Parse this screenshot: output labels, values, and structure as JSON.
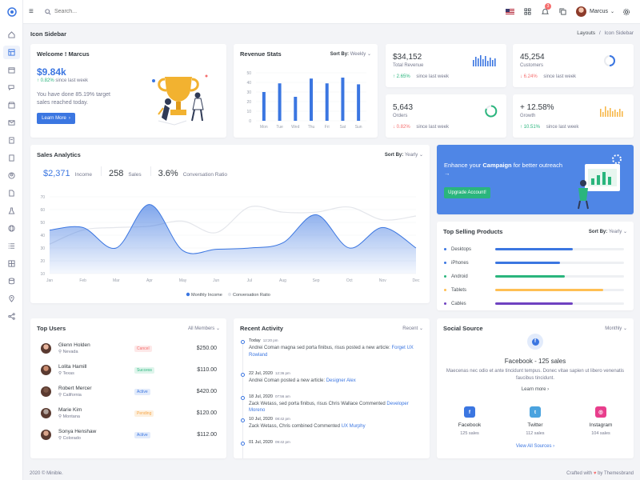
{
  "topbar": {
    "search_placeholder": "Search...",
    "username": "Marcus",
    "notif_count": "3"
  },
  "page": {
    "title": "Icon Sidebar",
    "breadcrumb": [
      "Layouts",
      "Icon Sidebar"
    ]
  },
  "welcome": {
    "title": "Welcome ! Marcus",
    "amount": "$9.84k",
    "change": "0.82%",
    "change_text": "since last week",
    "text": "You have done 85.19% target sales reached today.",
    "button": "Learn More"
  },
  "revenue": {
    "title": "Revenue Stats",
    "sort_label": "Sort By:",
    "sort_value": "Weekly"
  },
  "stats": [
    {
      "value": "$34,152",
      "label": "Total Revenue",
      "change": "2.65%",
      "dir": "up",
      "since": "since last week"
    },
    {
      "value": "45,254",
      "label": "Customers",
      "change": "6.24%",
      "dir": "down",
      "since": "since last week"
    },
    {
      "value": "5,643",
      "label": "Orders",
      "change": "0.82%",
      "dir": "down",
      "since": "since last week"
    },
    {
      "value": "+ 12.58%",
      "label": "Growth",
      "change": "10.51%",
      "dir": "up",
      "since": "since last week"
    }
  ],
  "analytics": {
    "title": "Sales Analytics",
    "sort_label": "Sort By:",
    "sort_value": "Yearly",
    "income": "$2,371",
    "income_label": "Income",
    "sales": "258",
    "sales_label": "Sales",
    "ratio": "3.6%",
    "ratio_label": "Conversation Ratio"
  },
  "campaign": {
    "text_pre": "Enhance your ",
    "text_bold": "Campaign",
    "text_post": " for better outreach",
    "button": "Upgrade Account!"
  },
  "products": {
    "title": "Top Selling Products",
    "sort_label": "Sort By:",
    "sort_value": "Yearly",
    "items": [
      {
        "name": "Desktops",
        "value": 0.6,
        "color": "#3b76e1"
      },
      {
        "name": "iPhones",
        "value": 0.5,
        "color": "#3b76e1"
      },
      {
        "name": "Android",
        "value": 0.54,
        "color": "#2ab57d"
      },
      {
        "name": "Tablets",
        "value": 0.84,
        "color": "#ffbf53"
      },
      {
        "name": "Cables",
        "value": 0.6,
        "color": "#6f42c1"
      }
    ]
  },
  "users": {
    "title": "Top Users",
    "filter": "All Members",
    "rows": [
      {
        "name": "Glenn Holden",
        "city": "Nevada",
        "status": "Cancel",
        "amount": "$250.00",
        "color": "#f56e6e",
        "bg": "#fde8e8"
      },
      {
        "name": "Lolita Hamill",
        "city": "Texas",
        "status": "Success",
        "amount": "$110.00",
        "color": "#2ab57d",
        "bg": "#dff5ec"
      },
      {
        "name": "Robert Mercer",
        "city": "California",
        "status": "Active",
        "amount": "$420.00",
        "color": "#3b76e1",
        "bg": "#e2ebfb"
      },
      {
        "name": "Marie Kim",
        "city": "Montana",
        "status": "Pending",
        "amount": "$120.00",
        "color": "#f7a84a",
        "bg": "#fdf0df"
      },
      {
        "name": "Sonya Henshaw",
        "city": "Colorado",
        "status": "Active",
        "amount": "$112.00",
        "color": "#3b76e1",
        "bg": "#e2ebfb"
      }
    ]
  },
  "activity": {
    "title": "Recent Activity",
    "filter": "Recent",
    "items": [
      {
        "date": "Today",
        "time": "12:20 pm",
        "text": "Andrei Coman magna sed porta finibus, risus posted a new article: ",
        "link": "Forget UX Rowland"
      },
      {
        "date": "22 Jul, 2020",
        "time": "12:36 pm",
        "text": "Andrei Coman posted a new article: ",
        "link": "Designer Alex"
      },
      {
        "date": "18 Jul, 2020",
        "time": "07:56 am",
        "text": "Zack Wetass, sed porta finibus, risus Chris Wallace Commented ",
        "link": "Developer Moreno"
      },
      {
        "date": "10 Jul, 2020",
        "time": "08:42 pm",
        "text": "Zack Wetass, Chris combined Commented ",
        "link": "UX Murphy"
      },
      {
        "date": "01 Jul, 2020",
        "time": "09:42 pm",
        "text": "",
        "link": ""
      }
    ]
  },
  "social": {
    "title": "Social Source",
    "filter": "Monthly",
    "headline": "Facebook - 125 sales",
    "text": "Maecenas nec odio et ante tincidunt tempus. Donec vitae sapien ut libero venenatis faucibus tincidunt.",
    "learn": "Learn more",
    "sources": [
      {
        "name": "Facebook",
        "sales": "125 sales",
        "color": "#3b76e1"
      },
      {
        "name": "Twitter",
        "sales": "112 sales",
        "color": "#4aa3df"
      },
      {
        "name": "Instagram",
        "sales": "104 sales",
        "color": "#e83e8c"
      }
    ],
    "view_all": "View All Sources"
  },
  "footer": {
    "left": "2020 © Minible.",
    "right_pre": "Crafted with",
    "right_post": "by Themesbrand"
  },
  "chart_data": [
    {
      "type": "bar",
      "title": "Revenue Stats",
      "categories": [
        "Mon",
        "Tue",
        "Wed",
        "Thu",
        "Fri",
        "Sat",
        "Sun"
      ],
      "values": [
        30,
        39,
        25,
        44,
        39,
        45,
        38
      ],
      "ylim": [
        0,
        50
      ],
      "yticks": [
        0,
        10,
        20,
        30,
        40,
        50
      ]
    },
    {
      "type": "area",
      "title": "Sales Analytics",
      "categories": [
        "Jan",
        "Feb",
        "Mar",
        "Apr",
        "May",
        "Jun",
        "Jul",
        "Aug",
        "Sep",
        "Oct",
        "Nov",
        "Dec"
      ],
      "ylim": [
        10,
        70
      ],
      "yticks": [
        10,
        20,
        30,
        40,
        50,
        60,
        70
      ],
      "series": [
        {
          "name": "Monthly Income",
          "values": [
            44,
            46,
            30,
            64,
            28,
            29,
            30,
            34,
            56,
            30,
            46,
            30
          ]
        },
        {
          "name": "Conversation Ratio",
          "values": [
            33,
            44,
            46,
            47,
            51,
            42,
            62,
            58,
            58,
            62,
            52,
            55
          ]
        }
      ]
    }
  ]
}
